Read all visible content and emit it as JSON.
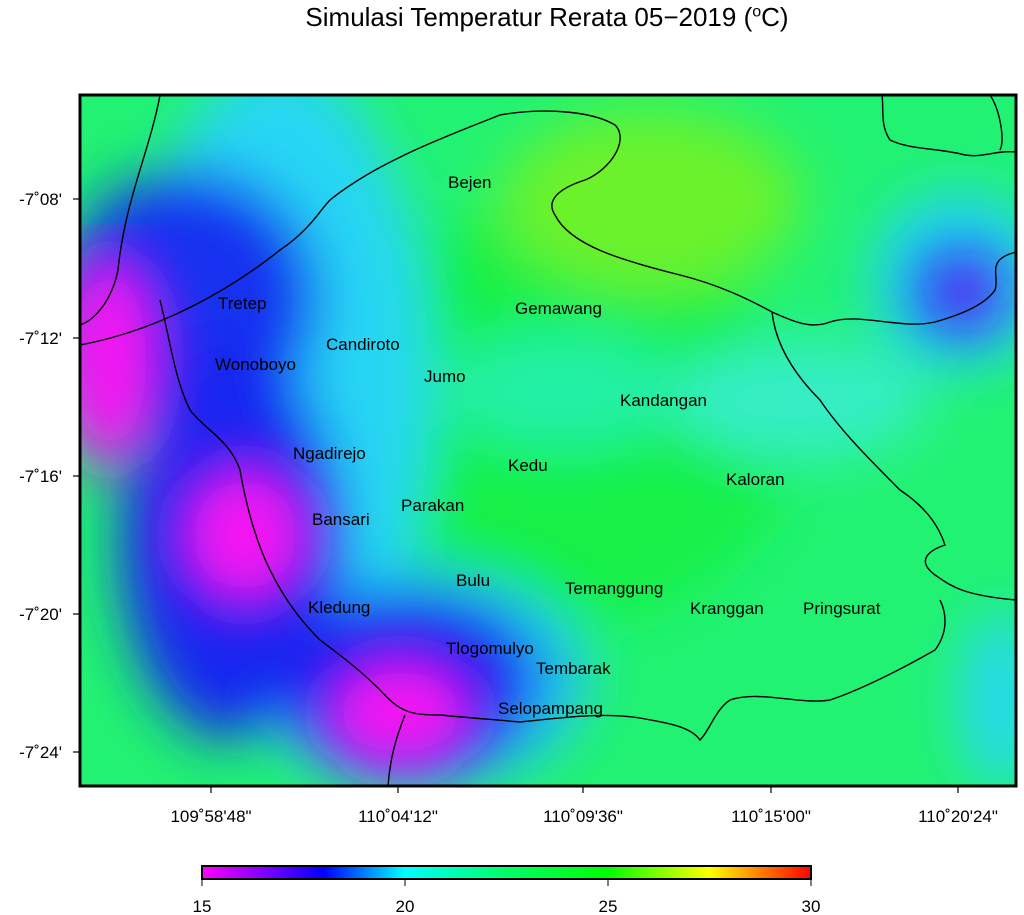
{
  "title": "Simulasi Temperatur Rerata 05−2019 (",
  "title_sup": "o",
  "title_end": "C)",
  "y_ticks": [
    "-7˚08'",
    "-7˚12'",
    "-7˚16'",
    "-7˚20'",
    "-7˚24'"
  ],
  "x_ticks": [
    "109˚58'48\"",
    "110˚04'12\"",
    "110˚09'36\"",
    "110˚15'00\"",
    "110˚20'24\""
  ],
  "places": [
    {
      "name": "Bejen"
    },
    {
      "name": "Tretep"
    },
    {
      "name": "Gemawang"
    },
    {
      "name": "Candiroto"
    },
    {
      "name": "Wonoboyo"
    },
    {
      "name": "Jumo"
    },
    {
      "name": "Kandangan"
    },
    {
      "name": "Ngadirejo"
    },
    {
      "name": "Kedu"
    },
    {
      "name": "Kaloran"
    },
    {
      "name": "Parakan"
    },
    {
      "name": "Bansari"
    },
    {
      "name": "Bulu"
    },
    {
      "name": "Temanggung"
    },
    {
      "name": "Kranggan"
    },
    {
      "name": "Pringsurat"
    },
    {
      "name": "Kledung"
    },
    {
      "name": "Tlogomulyo"
    },
    {
      "name": "Tembarak"
    },
    {
      "name": "Selopampang"
    }
  ],
  "colorbar": {
    "min": 15,
    "max": 30,
    "tick_labels": [
      "15",
      "20",
      "25",
      "30"
    ],
    "stops": [
      "#ff00ff",
      "#0000ff",
      "#00ffff",
      "#00ff00",
      "#ffff00",
      "#ff0000"
    ]
  }
}
